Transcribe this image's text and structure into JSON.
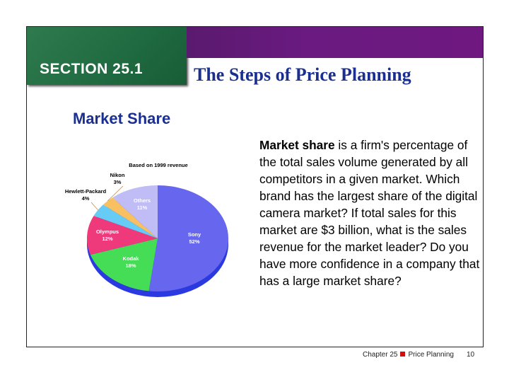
{
  "header": {
    "section": "SECTION 25.1",
    "title": "The Steps of Price Planning"
  },
  "subheading": "Market Share",
  "body": {
    "term": "Market share",
    "text": " is a firm's percentage of the total sales volume generated by all competitors in a given market. Which brand has the largest share of the digital camera market? If total sales for this market are $3 billion, what is the sales revenue for the market leader? Do you have more confidence in a company that has a large market share?"
  },
  "footer": {
    "chapter": "Chapter 25",
    "topic": "Price Planning",
    "page": "10",
    "bullet_color": "#d01010"
  },
  "chart_data": {
    "type": "pie",
    "title": "Based on 1999 revenue",
    "start": "12 o'clock, clockwise",
    "slices": [
      {
        "label": "Sony",
        "value": 52,
        "display": "52%",
        "color": "#6666ee"
      },
      {
        "label": "Kodak",
        "value": 18,
        "display": "18%",
        "color": "#44dd55"
      },
      {
        "label": "Olympus",
        "value": 12,
        "display": "12%",
        "color": "#ee3a7a"
      },
      {
        "label": "Hewlett-Packard",
        "value": 4,
        "display": "4%",
        "color": "#66ccf5"
      },
      {
        "label": "Nikon",
        "value": 3,
        "display": "3%",
        "color": "#f8c060"
      },
      {
        "label": "Others",
        "value": 11,
        "display": "11%",
        "color": "#c0bcf5"
      }
    ]
  }
}
